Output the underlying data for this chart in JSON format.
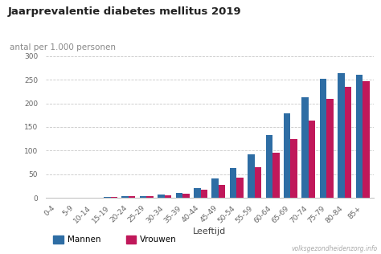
{
  "title": "Jaarprevalentie diabetes mellitus 2019",
  "ylabel": "antal per 1.000 personen",
  "xlabel": "Leeftijd",
  "watermark": "volksgezondheidenzorg.info",
  "categories": [
    "0-4",
    "5-9",
    "10-14",
    "15-19",
    "20-24",
    "25-29",
    "30-34",
    "35-39",
    "40-44",
    "45-49",
    "50-54",
    "55-59",
    "60-64",
    "65-69",
    "70-74",
    "75-79",
    "80-84",
    "85+"
  ],
  "mannen": [
    0.5,
    0.5,
    1.5,
    2.5,
    3.5,
    5.0,
    7.0,
    11.0,
    22.0,
    41.0,
    63.0,
    93.0,
    133.0,
    178.0,
    213.0,
    252.0,
    263.0,
    261.0
  ],
  "vrouwen": [
    0.5,
    0.5,
    1.5,
    2.5,
    3.5,
    4.5,
    6.0,
    10.0,
    18.0,
    28.0,
    44.0,
    65.0,
    96.0,
    125.0,
    163.0,
    210.0,
    234.0,
    246.0
  ],
  "color_mannen": "#2e6da4",
  "color_vrouwen": "#c0185a",
  "ylim": [
    0,
    300
  ],
  "yticks": [
    0,
    50,
    100,
    150,
    200,
    250,
    300
  ],
  "background_color": "#ffffff",
  "title_fontsize": 9.5,
  "ylabel_fontsize": 7.5,
  "xlabel_fontsize": 8,
  "tick_fontsize": 6.5,
  "legend_fontsize": 7.5,
  "watermark_fontsize": 5.5
}
